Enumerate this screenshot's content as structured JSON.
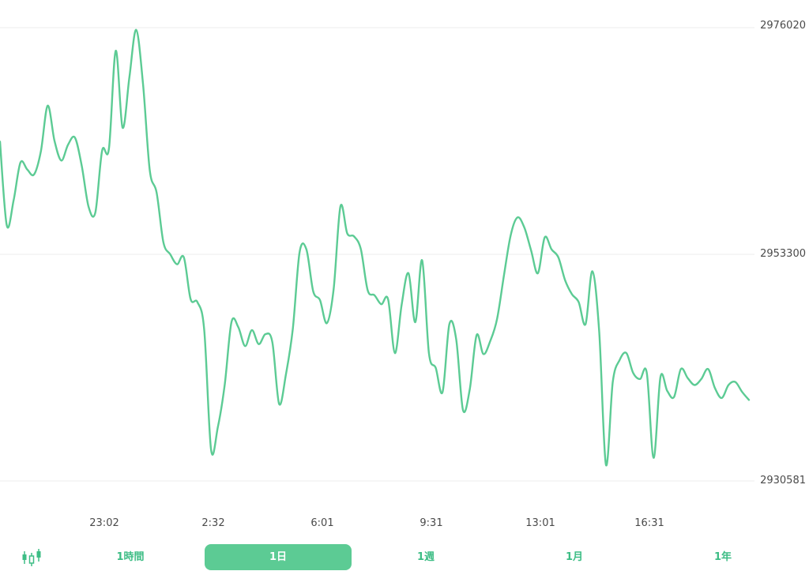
{
  "theme": {
    "line_color": "#5ccb94",
    "accent": "#5ccb94",
    "grid_color": "#eeeeee"
  },
  "chart_data": {
    "type": "line",
    "ylim": [
      2930581,
      2976020
    ],
    "y_ticks": [
      "2976020",
      "2953300",
      "2930581"
    ],
    "x_ticks": [
      "23:02",
      "2:32",
      "6:01",
      "9:31",
      "13:01",
      "16:31"
    ],
    "grid": true,
    "series": [
      {
        "values": [
          2964600,
          2956200,
          2958700,
          2962500,
          2961800,
          2961300,
          2963600,
          2968200,
          2964700,
          2962700,
          2964300,
          2965000,
          2962200,
          2958100,
          2957500,
          2963700,
          2963900,
          2973700,
          2966000,
          2971000,
          2975800,
          2970400,
          2961700,
          2959500,
          2954500,
          2953300,
          2952300,
          2953000,
          2948800,
          2948500,
          2945700,
          2933700,
          2936000,
          2940200,
          2946500,
          2946000,
          2944100,
          2945700,
          2944300,
          2945300,
          2944500,
          2938300,
          2941300,
          2945800,
          2953500,
          2953800,
          2949600,
          2948700,
          2946400,
          2949800,
          2958100,
          2955400,
          2955100,
          2953800,
          2949700,
          2949200,
          2948300,
          2948800,
          2943400,
          2948300,
          2951400,
          2946500,
          2952700,
          2943400,
          2941900,
          2939500,
          2946300,
          2944800,
          2937700,
          2939800,
          2945200,
          2943300,
          2944600,
          2946800,
          2951100,
          2955200,
          2957000,
          2956000,
          2953700,
          2951400,
          2955000,
          2953800,
          2953000,
          2950700,
          2949300,
          2948500,
          2946300,
          2951600,
          2945600,
          2932200,
          2940500,
          2942700,
          2943400,
          2941400,
          2940800,
          2941400,
          2932900,
          2941000,
          2939600,
          2939000,
          2941800,
          2940900,
          2940200,
          2940800,
          2941800,
          2939900,
          2938900,
          2940200,
          2940500,
          2939500,
          2938700
        ]
      }
    ]
  },
  "controls": {
    "chart_type_icon": "candlestick-icon",
    "ranges": [
      {
        "label": "1時間",
        "active": false
      },
      {
        "label": "1日",
        "active": true
      },
      {
        "label": "1週",
        "active": false
      },
      {
        "label": "1月",
        "active": false
      },
      {
        "label": "1年",
        "active": false
      }
    ]
  }
}
